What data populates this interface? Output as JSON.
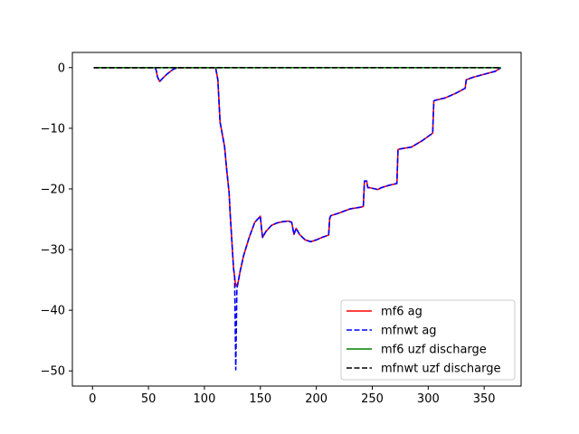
{
  "chart_data": {
    "type": "line",
    "title": "",
    "xlabel": "",
    "ylabel": "",
    "xlim": [
      -18,
      383
    ],
    "ylim": [
      -52.5,
      2.5
    ],
    "xticks": [
      0,
      50,
      100,
      150,
      200,
      250,
      300,
      350
    ],
    "yticks": [
      0,
      -10,
      -20,
      -30,
      -40,
      -50
    ],
    "tick_labels": {
      "x": [
        "0",
        "50",
        "100",
        "150",
        "200",
        "250",
        "300",
        "350"
      ],
      "y": [
        "0",
        "−10",
        "−20",
        "−30",
        "−40",
        "−50"
      ]
    },
    "grid": false,
    "legend_position": "lower-right",
    "series": [
      {
        "name": "mf6 ag",
        "color": "#ff0000",
        "style": "solid",
        "x": [
          1,
          56,
          57,
          58,
          60,
          63,
          67,
          72,
          76,
          90,
          100,
          110,
          112,
          114,
          116,
          118,
          120,
          122,
          123,
          125,
          126,
          127,
          128,
          130,
          132,
          135,
          140,
          145,
          150,
          151,
          152,
          155,
          160,
          165,
          170,
          175,
          178,
          180,
          182,
          185,
          190,
          195,
          200,
          205,
          211,
          212,
          213,
          220,
          230,
          240,
          242,
          243,
          245,
          246,
          248,
          255,
          258,
          265,
          272,
          273,
          275,
          285,
          295,
          304,
          305,
          306,
          315,
          325,
          333,
          334,
          340,
          350,
          360,
          365
        ],
        "y": [
          0,
          0,
          -0.5,
          -1.5,
          -2.3,
          -1.7,
          -1.0,
          -0.3,
          0,
          0,
          0,
          0,
          -2.0,
          -9.0,
          -11.0,
          -13.0,
          -17.0,
          -20.5,
          -24.0,
          -30.0,
          -33.0,
          -34.5,
          -36.0,
          -35.5,
          -33.5,
          -31.0,
          -28.0,
          -25.5,
          -24.5,
          -26.5,
          -28.0,
          -27.0,
          -26.0,
          -25.6,
          -25.4,
          -25.3,
          -25.5,
          -27.5,
          -26.5,
          -27.5,
          -28.4,
          -28.7,
          -28.4,
          -28.0,
          -27.6,
          -24.8,
          -24.4,
          -24.0,
          -23.3,
          -23.0,
          -22.9,
          -18.7,
          -18.7,
          -19.8,
          -19.8,
          -20.1,
          -19.8,
          -19.4,
          -19.1,
          -13.5,
          -13.4,
          -13.1,
          -12.0,
          -10.8,
          -5.5,
          -5.4,
          -5.0,
          -4.2,
          -3.4,
          -2.0,
          -1.6,
          -1.1,
          -0.6,
          0
        ]
      },
      {
        "name": "mfnwt ag",
        "color": "#0000ff",
        "style": "dashed",
        "x": [
          1,
          56,
          57,
          58,
          60,
          63,
          67,
          72,
          76,
          90,
          100,
          110,
          112,
          114,
          116,
          118,
          120,
          122,
          123,
          125,
          126,
          127,
          128,
          129,
          130,
          132,
          135,
          140,
          145,
          150,
          151,
          152,
          155,
          160,
          165,
          170,
          175,
          178,
          180,
          182,
          185,
          190,
          195,
          200,
          205,
          211,
          212,
          213,
          220,
          230,
          240,
          242,
          243,
          245,
          246,
          248,
          255,
          258,
          265,
          272,
          273,
          275,
          285,
          295,
          304,
          305,
          306,
          315,
          325,
          333,
          334,
          340,
          350,
          360,
          365
        ],
        "y": [
          0,
          0,
          -0.5,
          -1.5,
          -2.3,
          -1.7,
          -1.0,
          -0.3,
          0,
          0,
          0,
          0,
          -2.0,
          -9.0,
          -11.0,
          -13.0,
          -17.0,
          -20.5,
          -24.0,
          -30.0,
          -33.0,
          -34.5,
          -49.8,
          -36.5,
          -35.5,
          -33.5,
          -31.0,
          -28.0,
          -25.5,
          -24.5,
          -26.5,
          -28.0,
          -27.0,
          -26.0,
          -25.6,
          -25.4,
          -25.3,
          -25.5,
          -27.5,
          -26.5,
          -27.5,
          -28.4,
          -28.7,
          -28.4,
          -28.0,
          -27.6,
          -24.8,
          -24.4,
          -24.0,
          -23.3,
          -23.0,
          -22.9,
          -18.7,
          -18.7,
          -19.8,
          -19.8,
          -20.1,
          -19.8,
          -19.4,
          -19.1,
          -13.5,
          -13.4,
          -13.1,
          -12.0,
          -10.8,
          -5.5,
          -5.4,
          -5.0,
          -4.2,
          -3.4,
          -2.0,
          -1.6,
          -1.1,
          -0.6,
          0
        ]
      },
      {
        "name": "mf6 uzf discharge",
        "color": "#008000",
        "style": "solid",
        "x": [
          1,
          365
        ],
        "y": [
          0,
          0
        ]
      },
      {
        "name": "mfnwt uzf discharge",
        "color": "#000000",
        "style": "dashed",
        "x": [
          1,
          365
        ],
        "y": [
          0,
          0
        ]
      }
    ]
  }
}
